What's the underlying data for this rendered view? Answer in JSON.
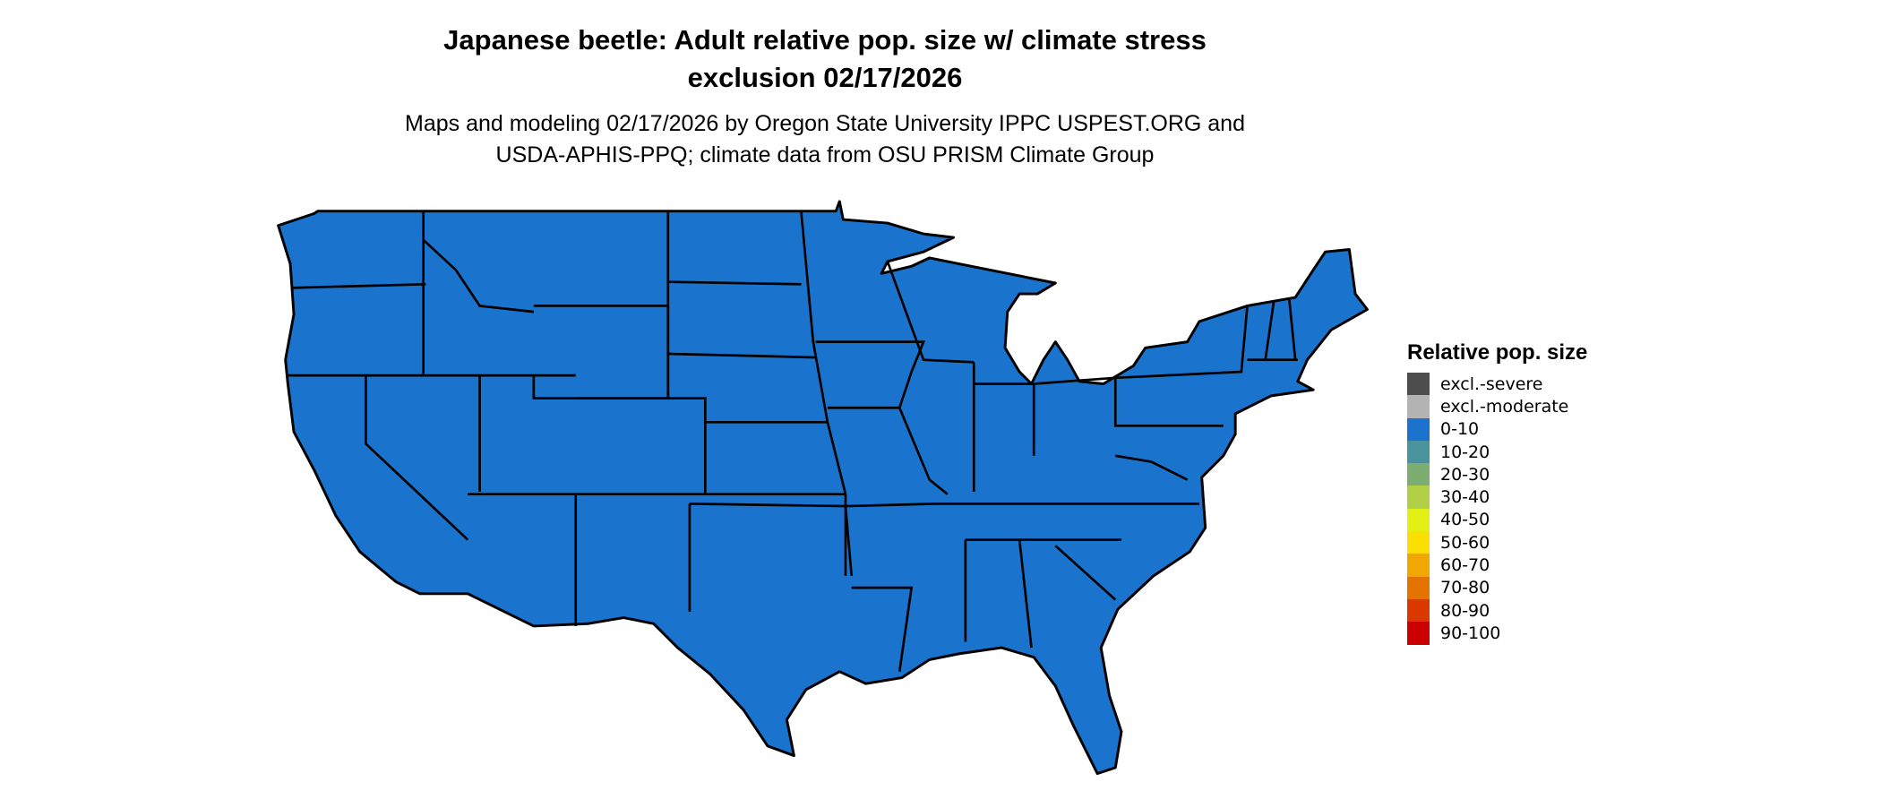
{
  "title": {
    "line1": "Japanese beetle: Adult relative pop. size w/ climate stress",
    "line2": "exclusion 02/17/2026"
  },
  "subtitle": {
    "line1": "Maps and modeling 02/17/2026 by Oregon State University IPPC USPEST.ORG and",
    "line2": "USDA-APHIS-PPQ; climate data from OSU PRISM Climate Group"
  },
  "map": {
    "region": "Conterminous United States",
    "fill_category": "0-10",
    "fill_color": "#1a73cc",
    "border_color": "#000000"
  },
  "legend": {
    "title": "Relative pop. size",
    "items": [
      {
        "label": "excl.-severe",
        "color": "#4d4d4d"
      },
      {
        "label": "excl.-moderate",
        "color": "#b3b3b3"
      },
      {
        "label": "0-10",
        "color": "#1a73cc"
      },
      {
        "label": "10-20",
        "color": "#4a929c"
      },
      {
        "label": "20-30",
        "color": "#7cae73"
      },
      {
        "label": "30-40",
        "color": "#b2d046"
      },
      {
        "label": "40-50",
        "color": "#e4f015"
      },
      {
        "label": "50-60",
        "color": "#f9e000"
      },
      {
        "label": "60-70",
        "color": "#f0a800"
      },
      {
        "label": "70-80",
        "color": "#e47300"
      },
      {
        "label": "80-90",
        "color": "#db3800"
      },
      {
        "label": "90-100",
        "color": "#cc0000"
      }
    ]
  }
}
